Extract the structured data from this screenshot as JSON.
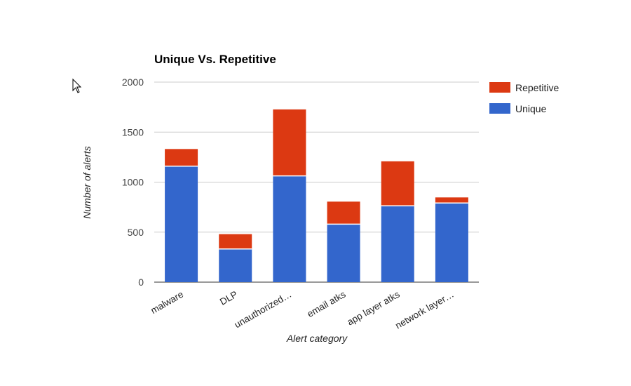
{
  "chart_data": {
    "type": "bar",
    "stacked": true,
    "title": "Unique Vs. Repetitive",
    "xlabel": "Alert category",
    "ylabel": "Number of alerts",
    "ylim": [
      0,
      2000
    ],
    "yticks": [
      "0",
      "500",
      "1000",
      "1500",
      "2000"
    ],
    "grid": true,
    "legend_position": "right",
    "categories": [
      "malware",
      "DLP",
      "unauthorized…",
      "email atks",
      "app layer atks",
      "network layer…"
    ],
    "series": [
      {
        "name": "Unique",
        "color": "#3366cc",
        "values": [
          1160,
          332,
          1062,
          580,
          763,
          791
        ]
      },
      {
        "name": "Repetitive",
        "color": "#dc3912",
        "values": [
          171,
          148,
          665,
          225,
          445,
          56
        ]
      }
    ],
    "legend": [
      "Repetitive",
      "Unique"
    ]
  }
}
